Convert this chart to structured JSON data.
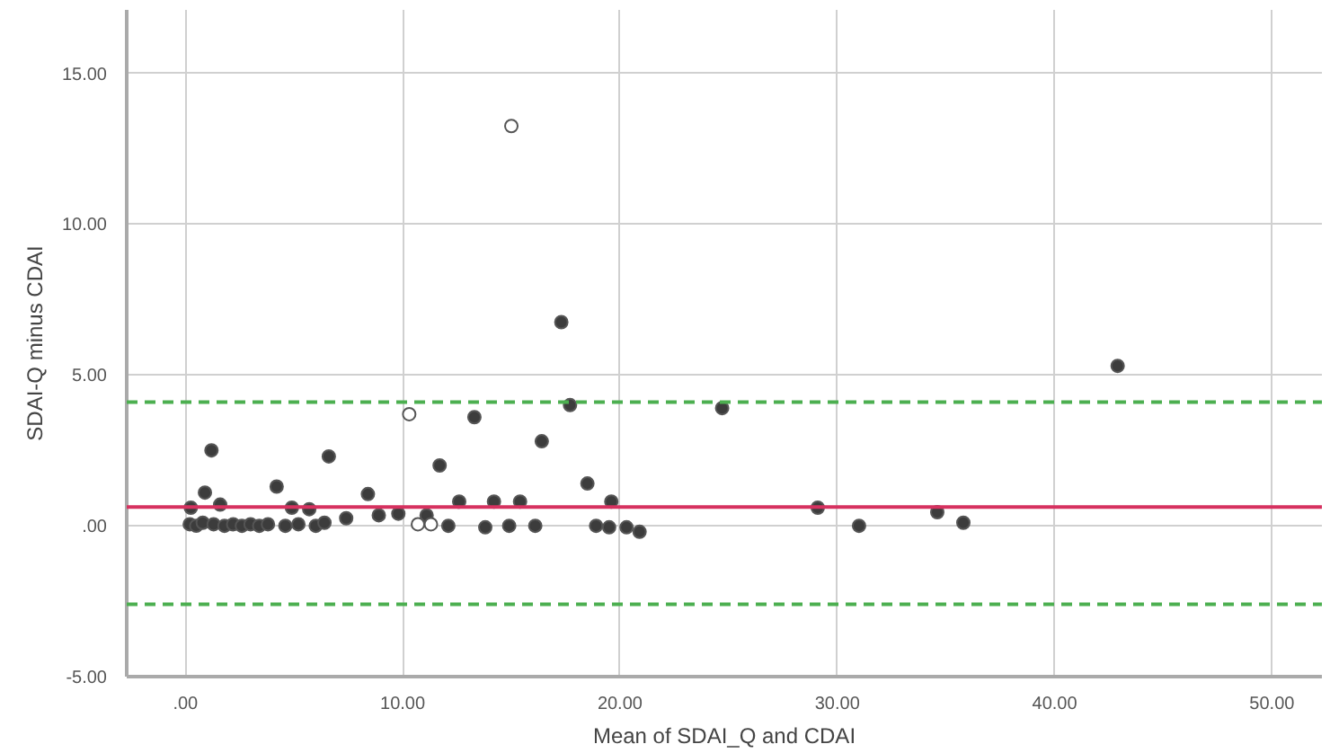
{
  "chart_data": {
    "type": "scatter",
    "xlabel": "Mean of SDAI_Q and CDAI",
    "ylabel": "SDAI-Q minus CDAI",
    "xlim": [
      -2.7,
      52.3
    ],
    "ylim": [
      -5,
      17.1
    ],
    "xticks": [
      {
        "value": 0,
        "label": ".00"
      },
      {
        "value": 10,
        "label": "10.00"
      },
      {
        "value": 20,
        "label": "20.00"
      },
      {
        "value": 30,
        "label": "30.00"
      },
      {
        "value": 40,
        "label": "40.00"
      },
      {
        "value": 50,
        "label": "50.00"
      }
    ],
    "yticks": [
      {
        "value": -5,
        "label": "-5.00"
      },
      {
        "value": 0,
        "label": ".00"
      },
      {
        "value": 5,
        "label": "5.00"
      },
      {
        "value": 10,
        "label": "10.00"
      },
      {
        "value": 15,
        "label": "15.00"
      }
    ],
    "grid": true,
    "marker": "circle",
    "series": [
      {
        "color": "#3c3c3c",
        "x": [
          17.3,
          42.9,
          24.7,
          17.7,
          13.3,
          1.2,
          6.6,
          16.4,
          11.7,
          18.5,
          4.2,
          0.9,
          8.4,
          12.6,
          14.2,
          15.4,
          19.6,
          29.1,
          34.6,
          35.8,
          31.0,
          0.25,
          1.6,
          4.9,
          5.7,
          7.4,
          8.9,
          9.8,
          12.1,
          13.8,
          14.9,
          16.1,
          18.9,
          19.5,
          20.3,
          20.9,
          0.2,
          0.5,
          0.8,
          1.3,
          1.8,
          2.2,
          2.6,
          3.0,
          3.4,
          3.8,
          4.6,
          5.2,
          6.0,
          6.4,
          11.1
        ],
        "values": [
          6.75,
          5.3,
          3.9,
          4.0,
          3.6,
          2.5,
          2.3,
          2.8,
          2.0,
          1.4,
          1.3,
          1.1,
          1.05,
          0.8,
          0.8,
          0.8,
          0.8,
          0.6,
          0.45,
          0.1,
          0.0,
          0.6,
          0.7,
          0.6,
          0.55,
          0.25,
          0.35,
          0.4,
          0.0,
          -0.05,
          0.0,
          0.0,
          0.0,
          -0.05,
          -0.05,
          -0.2,
          0.05,
          0.0,
          0.1,
          0.05,
          0.0,
          0.05,
          0.0,
          0.05,
          0.0,
          0.05,
          0.0,
          0.05,
          0.0,
          0.1,
          0.35
        ]
      },
      {
        "color": "#ffffff",
        "x": [
          15.0,
          10.3,
          10.7,
          11.3
        ],
        "values": [
          13.25,
          3.7,
          0.05,
          0.05
        ]
      }
    ],
    "ref_lines": [
      {
        "axis": "y",
        "value": 0.62,
        "color": "#d6315f",
        "line_style": "solid"
      },
      {
        "axis": "y",
        "value": 4.1,
        "color": "#4caf50",
        "line_style": "dashed"
      },
      {
        "axis": "y",
        "value": -2.6,
        "color": "#4caf50",
        "line_style": "dashed"
      }
    ]
  }
}
